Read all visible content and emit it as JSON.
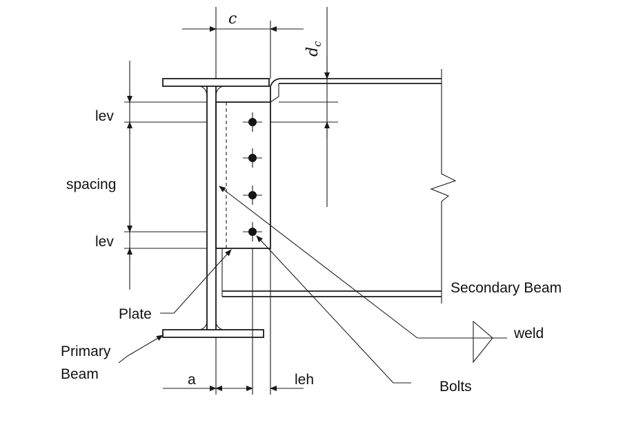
{
  "labels": {
    "c": "c",
    "dc": "dc",
    "lev_top": "lev",
    "spacing": "spacing",
    "lev_bottom": "lev",
    "plate": "Plate",
    "primary_beam_line1": "Primary",
    "primary_beam_line2": "Beam",
    "a": "a",
    "leh": "leh",
    "secondary_beam": "Secondary Beam",
    "weld": "weld",
    "bolts": "Bolts"
  },
  "bolt_count": 4
}
